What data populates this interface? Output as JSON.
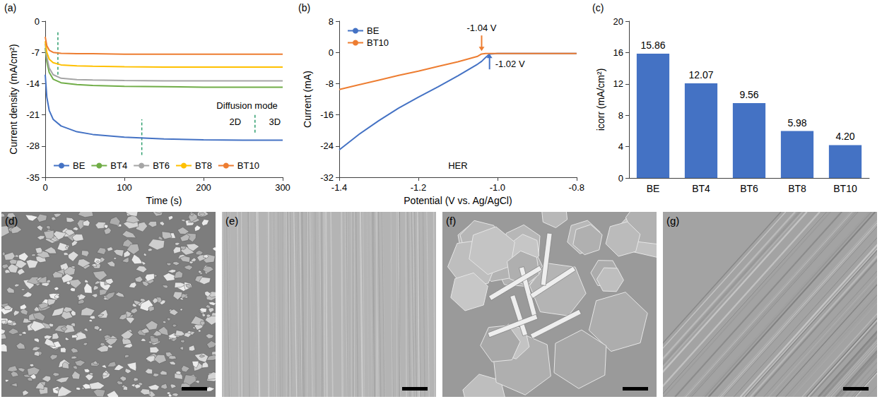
{
  "chart_data": [
    {
      "panel_label": "(a)",
      "type": "line",
      "x_label": "Time (s)",
      "y_label": "Current density (mA/cm²)",
      "xlim": [
        0,
        300
      ],
      "xticks": [
        0,
        100,
        200,
        300
      ],
      "ylim": [
        -35,
        0
      ],
      "yticks": [
        -35,
        -28,
        -21,
        -14,
        -7,
        0
      ],
      "grid": false,
      "legend": "lower left",
      "x": [
        0,
        2,
        5,
        10,
        20,
        40,
        60,
        100,
        150,
        200,
        250,
        300
      ],
      "series": [
        {
          "name": "BE",
          "color": "#4472C4",
          "values": [
            -12,
            -17,
            -20,
            -22,
            -23.5,
            -24.8,
            -25.4,
            -26,
            -26.4,
            -26.6,
            -26.7,
            -26.7
          ]
        },
        {
          "name": "BT4",
          "color": "#70AD47",
          "values": [
            -6,
            -9,
            -11.5,
            -13,
            -13.8,
            -14.2,
            -14.4,
            -14.6,
            -14.7,
            -14.8,
            -14.8,
            -14.8
          ]
        },
        {
          "name": "BT6",
          "color": "#A5A5A5",
          "values": [
            -5,
            -8,
            -10.5,
            -12,
            -12.8,
            -13.1,
            -13.2,
            -13.3,
            -13.4,
            -13.4,
            -13.4,
            -13.4
          ]
        },
        {
          "name": "BT8",
          "color": "#FFC000",
          "values": [
            -4.5,
            -7,
            -8.5,
            -9.3,
            -9.8,
            -10,
            -10.1,
            -10.2,
            -10.3,
            -10.3,
            -10.3,
            -10.3
          ]
        },
        {
          "name": "BT10",
          "color": "#ED7D31",
          "values": [
            -3.5,
            -5.5,
            -6.5,
            -7,
            -7.2,
            -7.3,
            -7.3,
            -7.4,
            -7.4,
            -7.4,
            -7.4,
            -7.4
          ]
        }
      ],
      "annotations": [
        {
          "text": "Diffusion mode",
          "x": 255,
          "y": -19
        },
        {
          "text": "2D",
          "x": 240,
          "y": -22.5
        },
        {
          "text": "3D",
          "x": 290,
          "y": -22.5
        }
      ],
      "dashed_markers": [
        {
          "x": 16,
          "y": [
            -12,
            -2.5
          ]
        },
        {
          "x": 122,
          "y": [
            -30,
            -22
          ]
        },
        {
          "x": 265,
          "y": [
            -25,
            -21
          ]
        }
      ]
    },
    {
      "panel_label": "(b)",
      "type": "line",
      "x_label": "Potential (V vs. Ag/AgCl)",
      "y_label": "Current (mA)",
      "xlim": [
        -1.4,
        -0.8
      ],
      "xticks": [
        -1.4,
        -1.2,
        {
          "value": -1,
          "label": "-1.0"
        },
        -0.8
      ],
      "ylim": [
        -32,
        8
      ],
      "yticks": [
        -32,
        -24,
        -16,
        -8,
        0,
        8
      ],
      "grid": false,
      "legend": "upper left",
      "x": [
        -1.4,
        -1.35,
        -1.3,
        -1.25,
        -1.2,
        -1.15,
        -1.1,
        -1.05,
        -1.04,
        -1.03,
        -1.02,
        -1.0,
        -0.9,
        -0.8
      ],
      "series": [
        {
          "name": "BE",
          "color": "#4472C4",
          "values": [
            -25,
            -21,
            -17.5,
            -14.3,
            -11.5,
            -8.8,
            -6,
            -3,
            -2.3,
            -1.3,
            -0.4,
            -0.3,
            -0.3,
            -0.3
          ]
        },
        {
          "name": "BT10",
          "color": "#ED7D31",
          "values": [
            -9.5,
            -8.3,
            -7.1,
            -5.9,
            -4.8,
            -3.6,
            -2.4,
            -1,
            -0.4,
            -0.3,
            -0.3,
            -0.3,
            -0.3,
            -0.3
          ]
        }
      ],
      "annotations": [
        {
          "text": "-1.04 V",
          "x": -1.04,
          "y": 0,
          "color": "#ED7D31",
          "marker": "arrow_down"
        },
        {
          "text": "-1.02 V",
          "x": -1.02,
          "y": 0,
          "color": "#4472C4",
          "marker": "arrow_up"
        },
        {
          "text": "HER",
          "x": -1.1,
          "y": -29
        }
      ]
    },
    {
      "panel_label": "(c)",
      "type": "bar",
      "y_label": "icorr (mA/cm²)",
      "categories": [
        "BE",
        "BT4",
        "BT6",
        "BT8",
        "BT10"
      ],
      "values": [
        15.86,
        12.07,
        9.56,
        5.98,
        4.2
      ],
      "value_labels": [
        "15.86",
        "12.07",
        "9.56",
        "5.98",
        "4.20"
      ],
      "color": "#4472C4",
      "data_labels": true,
      "ylim": [
        0,
        20
      ],
      "yticks": [
        0,
        4,
        8,
        12,
        16,
        20
      ],
      "grid": false
    }
  ],
  "image_panels": [
    {
      "label": "(d)"
    },
    {
      "label": "(e)"
    },
    {
      "label": "(f)"
    },
    {
      "label": "(g)"
    }
  ]
}
